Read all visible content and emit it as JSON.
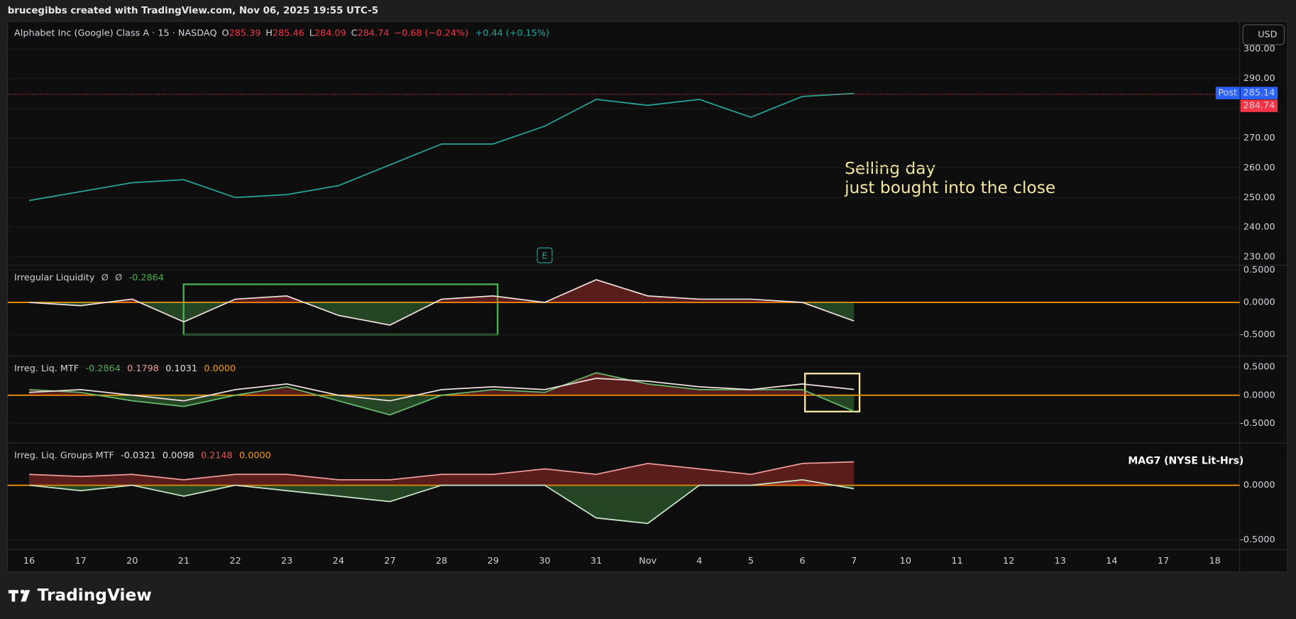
{
  "header": {
    "credit": "brucegibbs created with TradingView.com, Nov 06, 2025 19:55 UTC-5",
    "logo": "TradingView",
    "currency": "USD"
  },
  "annotations": {
    "note_line1": "Selling day",
    "note_line2": "just bought into the close",
    "group": "MAG7 (NYSE Lit-Hrs)",
    "earnings": "E"
  },
  "chart_data": [
    {
      "type": "line",
      "title": "Alphabet Inc (Google) Class A · 15 · NASDAQ",
      "ohlc": [
        {
          "label": "O",
          "value": 285.39
        },
        {
          "label": "H",
          "value": 285.46
        },
        {
          "label": "L",
          "value": 284.09
        },
        {
          "label": "C",
          "value": 284.74
        }
      ],
      "change": "−0.68 (−0.24%)",
      "post_change": "+0.44 (+0.15%)",
      "post_label": "Post",
      "post_price": 285.14,
      "last_price": 284.74,
      "categories": [
        "16",
        "17",
        "20",
        "21",
        "22",
        "23",
        "24",
        "27",
        "28",
        "29",
        "30",
        "31",
        "Nov",
        "4",
        "5",
        "6",
        "7",
        "10",
        "11",
        "12",
        "13",
        "14",
        "17",
        "18"
      ],
      "values": [
        249,
        252,
        255,
        256,
        250,
        251,
        254,
        261,
        268,
        268,
        274,
        283,
        281,
        283,
        277,
        284,
        285,
        null,
        null,
        null,
        null,
        null,
        null,
        null
      ],
      "color": "#26a69a",
      "ylim": [
        227.5,
        309.2
      ],
      "yticks": [
        {
          "value": 230,
          "label": "230.00"
        },
        {
          "value": 240,
          "label": "240.00"
        },
        {
          "value": 250,
          "label": "250.00"
        },
        {
          "value": 260,
          "label": "260.00"
        },
        {
          "value": 270,
          "label": "270.00"
        },
        {
          "value": 280,
          "label": "280.00"
        },
        {
          "value": 290,
          "label": "290.00"
        },
        {
          "value": 300,
          "label": "300.00"
        }
      ]
    },
    {
      "type": "line",
      "title": "Irregular Liquidity",
      "legend_values": [
        "Ø",
        "Ø",
        "-0.2864"
      ],
      "legend_colors": [
        "#b2b5be",
        "#b2b5be",
        "#4caf50"
      ],
      "series": [
        {
          "color": "#f0e0e0",
          "fill": true,
          "values": [
            0.0,
            -0.05,
            0.05,
            -0.3,
            0.05,
            0.1,
            -0.2,
            -0.35,
            0.05,
            0.1,
            0.0,
            0.35,
            0.1,
            0.05,
            0.05,
            0.0,
            -0.2864,
            null,
            null,
            null,
            null,
            null,
            null,
            null
          ]
        }
      ],
      "ylim": [
        -0.83,
        0.56
      ],
      "yticks": [
        {
          "value": 0.5,
          "label": "0.5000"
        },
        {
          "value": 0,
          "label": "0.0000"
        },
        {
          "value": -0.5,
          "label": "-0.5000"
        }
      ]
    },
    {
      "type": "line",
      "title": "Irreg. Liq. MTF",
      "legend_values": [
        "-0.2864",
        "0.1798",
        "0.1031",
        "0.0000"
      ],
      "legend_colors": [
        "#4caf50",
        "#ef9a9a",
        "#e0e0e0",
        "#ff9800"
      ],
      "series": [
        {
          "color": "#66bb6a",
          "fill": true,
          "values": [
            0.1,
            0.05,
            -0.1,
            -0.2,
            0.0,
            0.15,
            -0.1,
            -0.35,
            0.0,
            0.1,
            0.05,
            0.4,
            0.2,
            0.1,
            0.1,
            0.1,
            -0.2864,
            null,
            null,
            null,
            null,
            null,
            null,
            null
          ]
        },
        {
          "color": "#f0e0e0",
          "fill": false,
          "values": [
            0.05,
            0.1,
            0.0,
            -0.1,
            0.1,
            0.2,
            0.0,
            -0.1,
            0.1,
            0.15,
            0.1,
            0.3,
            0.25,
            0.15,
            0.1,
            0.2,
            0.1031,
            null,
            null,
            null,
            null,
            null,
            null,
            null
          ]
        }
      ],
      "ylim": [
        -0.85,
        0.68
      ],
      "yticks": [
        {
          "value": 0.5,
          "label": "0.5000"
        },
        {
          "value": 0,
          "label": "0.0000"
        },
        {
          "value": -0.5,
          "label": "-0.5000"
        }
      ]
    },
    {
      "type": "line",
      "title": "Irreg. Liq. Groups MTF",
      "legend_values": [
        "-0.0321",
        "0.0098",
        "0.2148",
        "0.0000"
      ],
      "legend_colors": [
        "#e0e0e0",
        "#e0e0e0",
        "#ef5350",
        "#ff9800"
      ],
      "series": [
        {
          "color": "#ef9a9a",
          "fill": true,
          "values": [
            0.1,
            0.08,
            0.1,
            0.05,
            0.1,
            0.1,
            0.05,
            0.05,
            0.1,
            0.1,
            0.15,
            0.1,
            0.2,
            0.15,
            0.1,
            0.2,
            0.2148,
            null,
            null,
            null,
            null,
            null,
            null,
            null
          ]
        },
        {
          "color": "#c8e6c9",
          "fill": true,
          "values": [
            0.0,
            -0.05,
            0.0,
            -0.1,
            0.0,
            -0.05,
            -0.1,
            -0.15,
            0.0,
            0.0,
            0.0,
            -0.3,
            -0.35,
            0.0,
            0.0,
            0.05,
            -0.0321,
            null,
            null,
            null,
            null,
            null,
            null,
            null
          ]
        }
      ],
      "ylim": [
        -0.59,
        0.38
      ],
      "yticks": [
        {
          "value": 0,
          "label": "0.0000"
        },
        {
          "value": -0.5,
          "label": "-0.5000"
        }
      ]
    }
  ]
}
